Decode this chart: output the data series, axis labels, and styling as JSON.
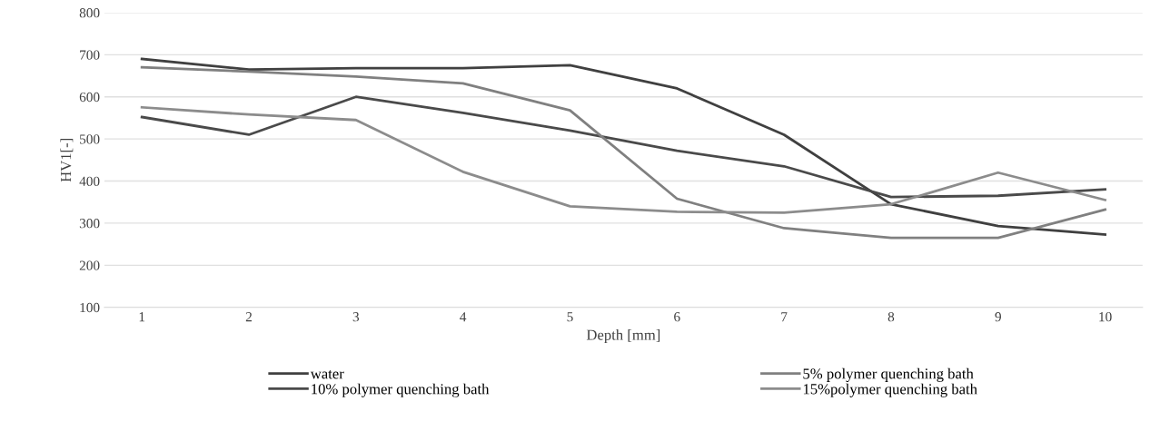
{
  "chart_data": {
    "type": "line",
    "xlabel": "Depth [mm]",
    "ylabel": "HV1[-]",
    "categories": [
      "1",
      "2",
      "3",
      "4",
      "5",
      "6",
      "7",
      "8",
      "9",
      "10"
    ],
    "series": [
      {
        "name": "water",
        "color": "#404040",
        "values": [
          690,
          665,
          668,
          668,
          675,
          620,
          510,
          345,
          293,
          273
        ]
      },
      {
        "name": "10% polymer quenching bath",
        "color": "#4a4a4a",
        "values": [
          552,
          510,
          600,
          562,
          520,
          472,
          435,
          362,
          365,
          380
        ]
      },
      {
        "name": "5% polymer quenching bath",
        "color": "#808080",
        "values": [
          670,
          660,
          648,
          632,
          568,
          358,
          288,
          265,
          265,
          332
        ]
      },
      {
        "name": "15%polymer quenching bath",
        "color": "#8c8c8c",
        "values": [
          575,
          558,
          545,
          422,
          340,
          327,
          325,
          345,
          420,
          355
        ]
      }
    ],
    "ylim": [
      100,
      800
    ],
    "yticks": [
      100,
      200,
      300,
      400,
      500,
      600,
      700,
      800
    ],
    "grid": "y",
    "legend": "bottom",
    "marker": "none",
    "line_style": "solid"
  }
}
